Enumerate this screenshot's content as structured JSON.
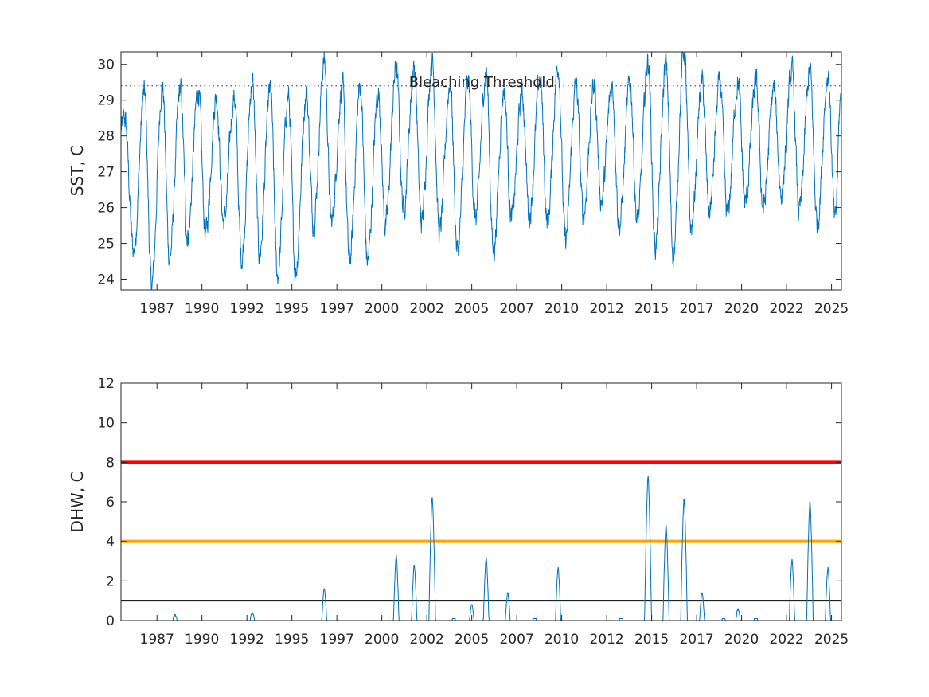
{
  "chart_data": [
    {
      "type": "line",
      "ylabel": "SST, C",
      "xlabel": "",
      "x_tick_labels": [
        "1987",
        "1990",
        "1992",
        "1995",
        "1997",
        "2000",
        "2002",
        "2005",
        "2007",
        "2010",
        "2012",
        "2015",
        "2017",
        "2020",
        "2022",
        "2025"
      ],
      "xlim": [
        1985.0,
        2025.05
      ],
      "ylim": [
        23.7,
        30.35
      ],
      "y_ticks": [
        24,
        25,
        26,
        27,
        28,
        29,
        30
      ],
      "grid": false,
      "annotations": [
        {
          "text": "Bleaching Threshold",
          "x": 2000.5,
          "y": 29.5
        }
      ],
      "reference_lines": [
        {
          "name": "Bleaching Threshold",
          "y": 29.4,
          "style": "dotted",
          "color": "#4040ff"
        }
      ],
      "series": [
        {
          "color": "#0072BD",
          "seasonal_peaks": [
            [
              1985.2,
              28.5
            ],
            [
              1986.3,
              29.2
            ],
            [
              1987.3,
              29.4
            ],
            [
              1988.3,
              29.3
            ],
            [
              1989.3,
              29.3
            ],
            [
              1990.3,
              29.1
            ],
            [
              1991.3,
              29.1
            ],
            [
              1992.3,
              29.5
            ],
            [
              1993.3,
              29.3
            ],
            [
              1994.3,
              29.1
            ],
            [
              1995.3,
              29.2
            ],
            [
              1996.3,
              30.1
            ],
            [
              1997.3,
              29.4
            ],
            [
              1998.3,
              29.4
            ],
            [
              1999.3,
              29.2
            ],
            [
              2000.3,
              29.9
            ],
            [
              2001.3,
              29.9
            ],
            [
              2002.3,
              30.1
            ],
            [
              2003.3,
              29.5
            ],
            [
              2004.3,
              29.5
            ],
            [
              2005.3,
              29.8
            ],
            [
              2006.3,
              29.3
            ],
            [
              2007.3,
              29.2
            ],
            [
              2008.3,
              29.6
            ],
            [
              2009.3,
              30.0
            ],
            [
              2010.3,
              29.4
            ],
            [
              2011.3,
              29.4
            ],
            [
              2012.3,
              29.4
            ],
            [
              2013.3,
              29.5
            ],
            [
              2014.3,
              30.1
            ],
            [
              2015.3,
              30.0
            ],
            [
              2016.3,
              30.4
            ],
            [
              2017.3,
              29.5
            ],
            [
              2018.3,
              29.5
            ],
            [
              2019.3,
              29.5
            ],
            [
              2020.3,
              29.5
            ],
            [
              2021.3,
              29.3
            ],
            [
              2022.3,
              29.8
            ],
            [
              2023.3,
              29.8
            ],
            [
              2024.3,
              29.7
            ],
            [
              2025.0,
              29.0
            ]
          ],
          "seasonal_troughs": [
            [
              1985.7,
              24.8
            ],
            [
              1986.7,
              23.8
            ],
            [
              1987.7,
              24.6
            ],
            [
              1988.7,
              25.2
            ],
            [
              1989.7,
              25.3
            ],
            [
              1990.7,
              25.6
            ],
            [
              1991.7,
              24.6
            ],
            [
              1992.7,
              24.7
            ],
            [
              1993.7,
              24.1
            ],
            [
              1994.7,
              24.2
            ],
            [
              1995.7,
              25.6
            ],
            [
              1996.7,
              25.6
            ],
            [
              1997.7,
              24.5
            ],
            [
              1998.7,
              24.5
            ],
            [
              1999.7,
              25.5
            ],
            [
              2000.7,
              26.0
            ],
            [
              2001.7,
              25.6
            ],
            [
              2002.7,
              25.3
            ],
            [
              2003.7,
              24.8
            ],
            [
              2004.7,
              25.7
            ],
            [
              2005.7,
              24.8
            ],
            [
              2006.7,
              25.7
            ],
            [
              2007.7,
              25.8
            ],
            [
              2008.7,
              25.6
            ],
            [
              2009.7,
              25.1
            ],
            [
              2010.7,
              25.8
            ],
            [
              2011.7,
              26.2
            ],
            [
              2012.7,
              25.5
            ],
            [
              2013.7,
              25.6
            ],
            [
              2014.7,
              24.9
            ],
            [
              2015.7,
              24.7
            ],
            [
              2016.7,
              25.4
            ],
            [
              2017.7,
              25.9
            ],
            [
              2018.7,
              25.8
            ],
            [
              2019.7,
              26.1
            ],
            [
              2020.7,
              26.0
            ],
            [
              2021.7,
              26.4
            ],
            [
              2022.7,
              25.9
            ],
            [
              2023.7,
              25.6
            ],
            [
              2024.7,
              25.6
            ]
          ]
        }
      ]
    },
    {
      "type": "line",
      "ylabel": "DHW, C",
      "xlabel": "",
      "x_tick_labels": [
        "1987",
        "1990",
        "1992",
        "1995",
        "1997",
        "2000",
        "2002",
        "2005",
        "2007",
        "2010",
        "2012",
        "2015",
        "2017",
        "2020",
        "2022",
        "2025"
      ],
      "xlim": [
        1985.0,
        2025.05
      ],
      "ylim": [
        0,
        12
      ],
      "y_ticks": [
        0,
        2,
        4,
        6,
        8,
        10,
        12
      ],
      "grid": false,
      "reference_lines": [
        {
          "y": 8,
          "color": "#ff0000"
        },
        {
          "y": 4,
          "color": "#ffa500"
        },
        {
          "y": 1,
          "color": "#000000"
        }
      ],
      "series": [
        {
          "color": "#0072BD",
          "events": [
            {
              "x": 1988.0,
              "peak": 0.3
            },
            {
              "x": 1992.3,
              "peak": 0.45
            },
            {
              "x": 1996.3,
              "peak": 1.65
            },
            {
              "x": 2000.3,
              "peak": 3.3
            },
            {
              "x": 2001.3,
              "peak": 2.85
            },
            {
              "x": 2002.3,
              "peak": 6.3
            },
            {
              "x": 2003.5,
              "peak": 0.15
            },
            {
              "x": 2004.5,
              "peak": 0.8
            },
            {
              "x": 2005.3,
              "peak": 3.2
            },
            {
              "x": 2006.5,
              "peak": 1.45
            },
            {
              "x": 2008.0,
              "peak": 0.15
            },
            {
              "x": 2009.3,
              "peak": 2.7
            },
            {
              "x": 2012.8,
              "peak": 0.15
            },
            {
              "x": 2014.3,
              "peak": 7.35
            },
            {
              "x": 2015.3,
              "peak": 4.85
            },
            {
              "x": 2016.3,
              "peak": 6.2
            },
            {
              "x": 2017.3,
              "peak": 1.45
            },
            {
              "x": 2018.5,
              "peak": 0.15
            },
            {
              "x": 2019.3,
              "peak": 0.6
            },
            {
              "x": 2020.3,
              "peak": 0.15
            },
            {
              "x": 2022.3,
              "peak": 3.1
            },
            {
              "x": 2023.3,
              "peak": 6.05
            },
            {
              "x": 2024.3,
              "peak": 2.7
            }
          ]
        }
      ]
    }
  ]
}
